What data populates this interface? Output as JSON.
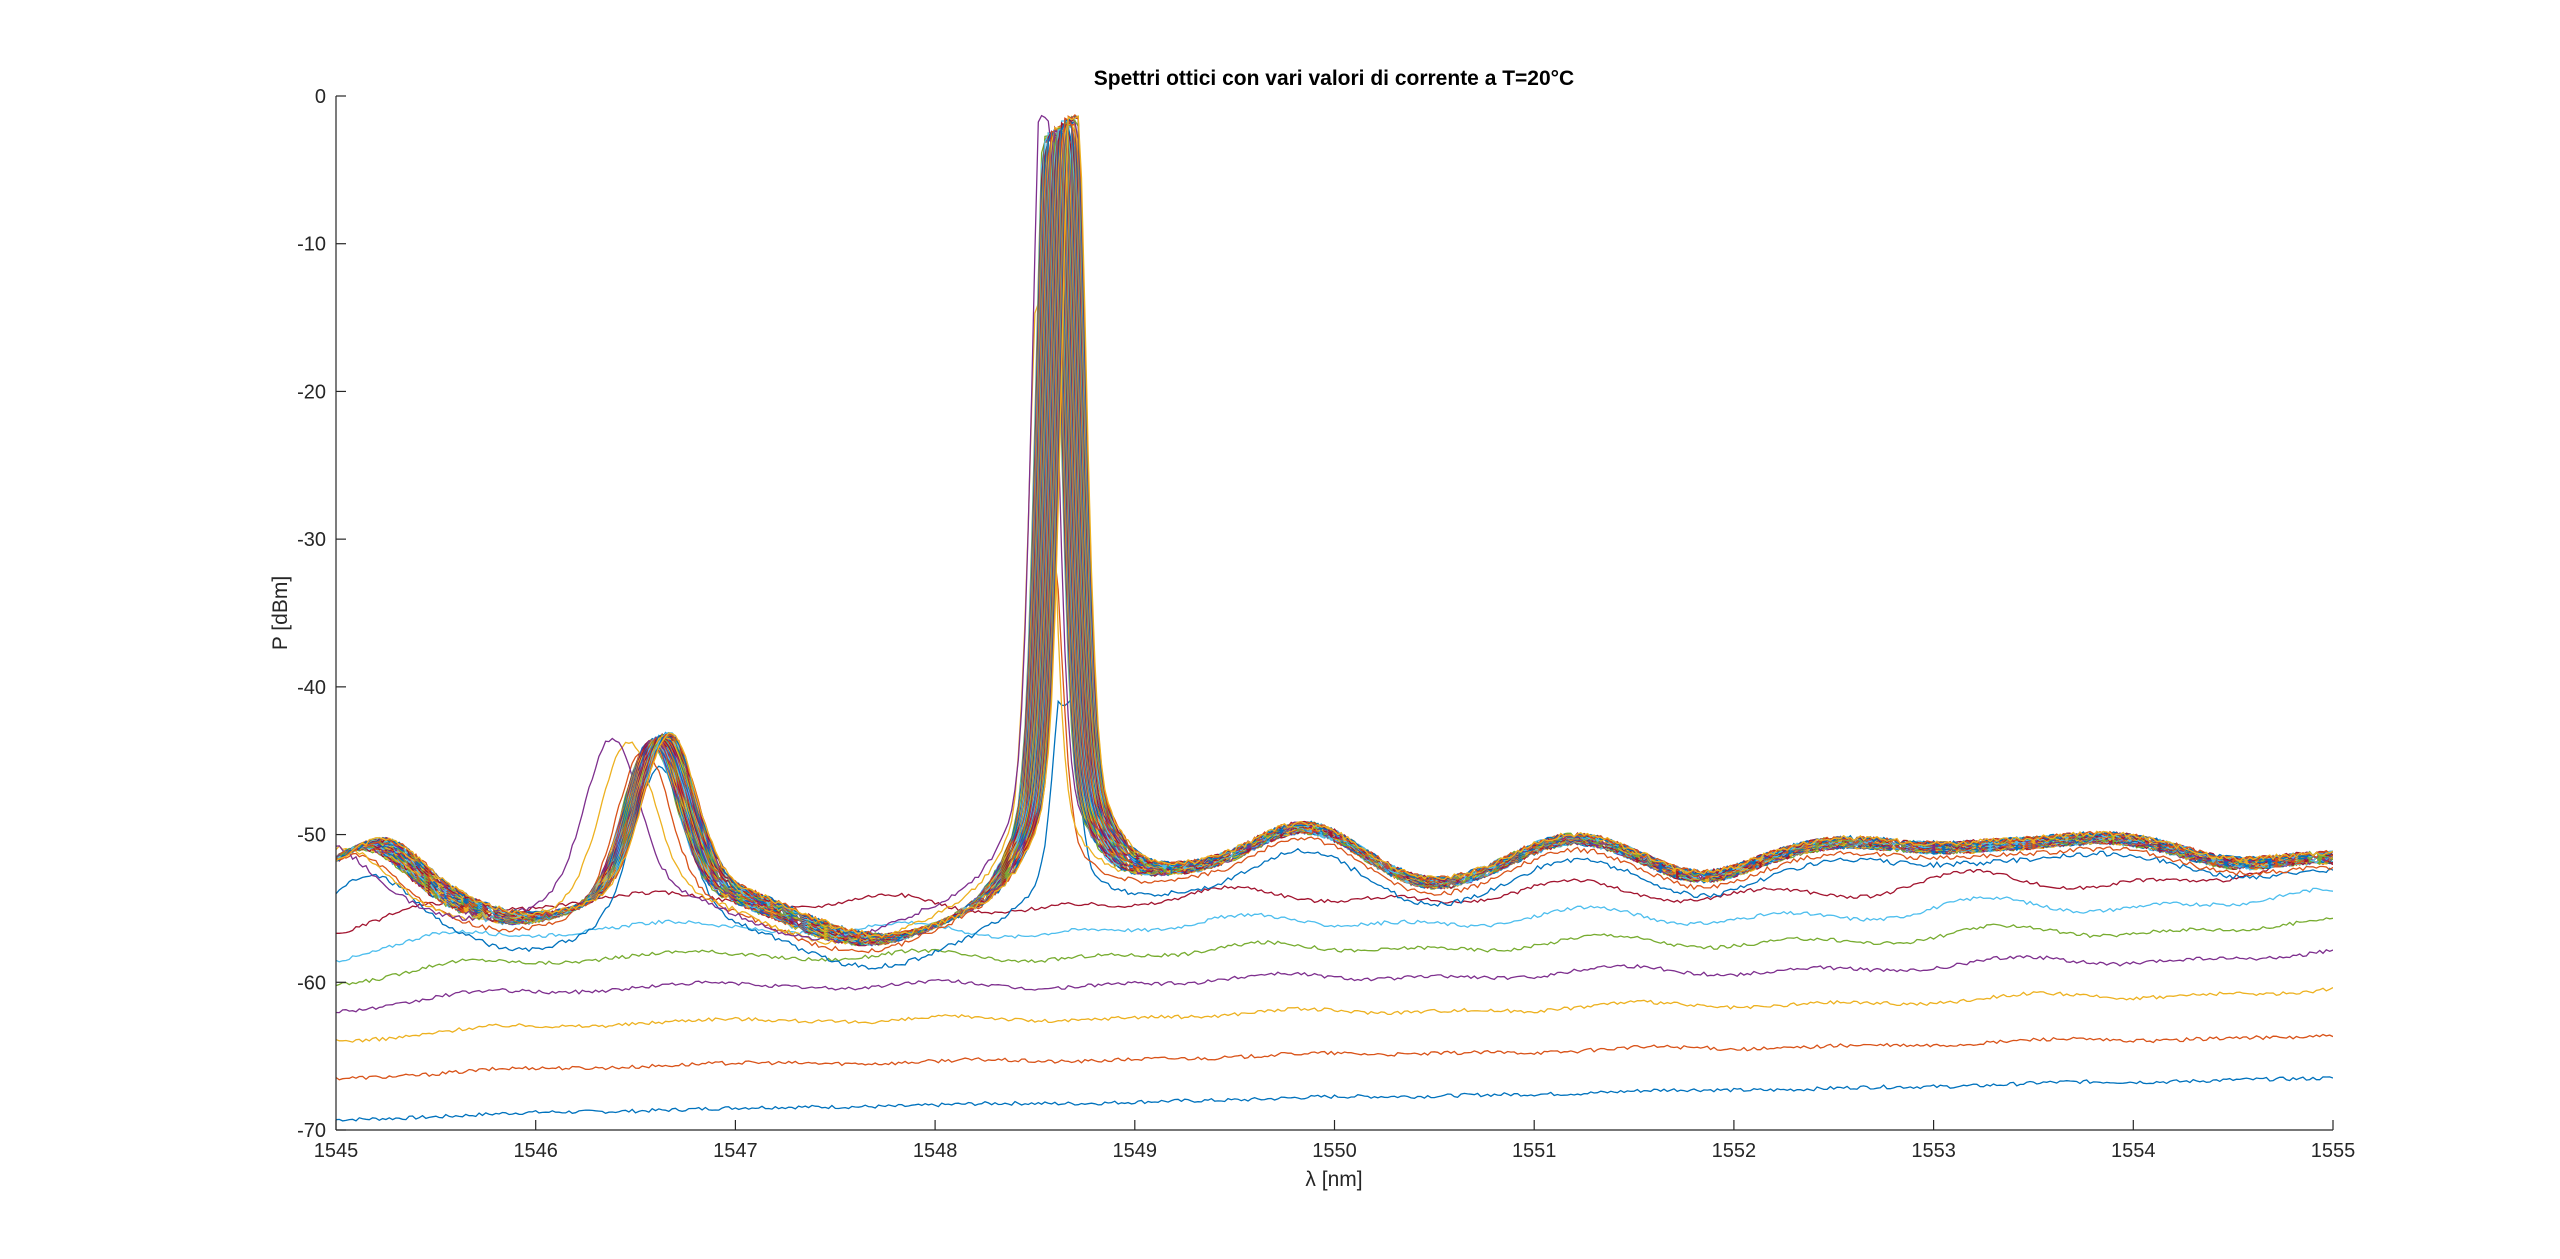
{
  "chart_data": {
    "type": "line",
    "title": "Spettri ottici con vari valori di corrente a T=20°C",
    "xlabel": "λ [nm]",
    "ylabel": "P [dBm]",
    "xlim": [
      1545,
      1555
    ],
    "ylim": [
      -70,
      0
    ],
    "xticks": [
      1545,
      1546,
      1547,
      1548,
      1549,
      1550,
      1551,
      1552,
      1553,
      1554,
      1555
    ],
    "yticks": [
      0,
      -10,
      -20,
      -30,
      -40,
      -50,
      -60,
      -70
    ],
    "grid": false,
    "legend": "none",
    "colors": [
      "#0072BD",
      "#D95319",
      "#EDB120",
      "#7E2F8E",
      "#77AC30",
      "#4DBEEE",
      "#A2142F"
    ],
    "series_count": 80,
    "representative_series": [
      {
        "floor": -69.3,
        "tilt": 2.7,
        "lasing": false,
        "ripple": 0.3
      },
      {
        "floor": -66.5,
        "tilt": 2.6,
        "lasing": false,
        "ripple": 0.6
      },
      {
        "floor": -64.0,
        "tilt": 2.9,
        "lasing": false,
        "ripple": 1.1
      },
      {
        "floor": -62.0,
        "tilt": 3.1,
        "lasing": false,
        "ripple": 1.6
      },
      {
        "floor": -60.3,
        "tilt": 3.2,
        "lasing": false,
        "ripple": 2.1
      },
      {
        "floor": -58.8,
        "tilt": 3.2,
        "lasing": false,
        "ripple": 2.7
      },
      {
        "floor": -57.3,
        "tilt": 3.1,
        "lasing": false,
        "ripple": 3.3
      },
      {
        "floor": -55.2,
        "tilt": 2.8,
        "lasing": true,
        "peak_nm": 1548.65,
        "peak_dBm": -41.0
      },
      {
        "floor": -53.8,
        "tilt": 1.6,
        "lasing": true,
        "peak_nm": 1548.6,
        "peak_dBm": -31.4
      },
      {
        "floor": -53.2,
        "tilt": 1.4,
        "lasing": true,
        "peak_nm": 1548.58,
        "peak_dBm": -14.0
      },
      {
        "floor": -53.0,
        "tilt": 1.5,
        "lasing": true,
        "peak_nm": 1548.62,
        "peak_dBm": -1.5
      }
    ]
  }
}
